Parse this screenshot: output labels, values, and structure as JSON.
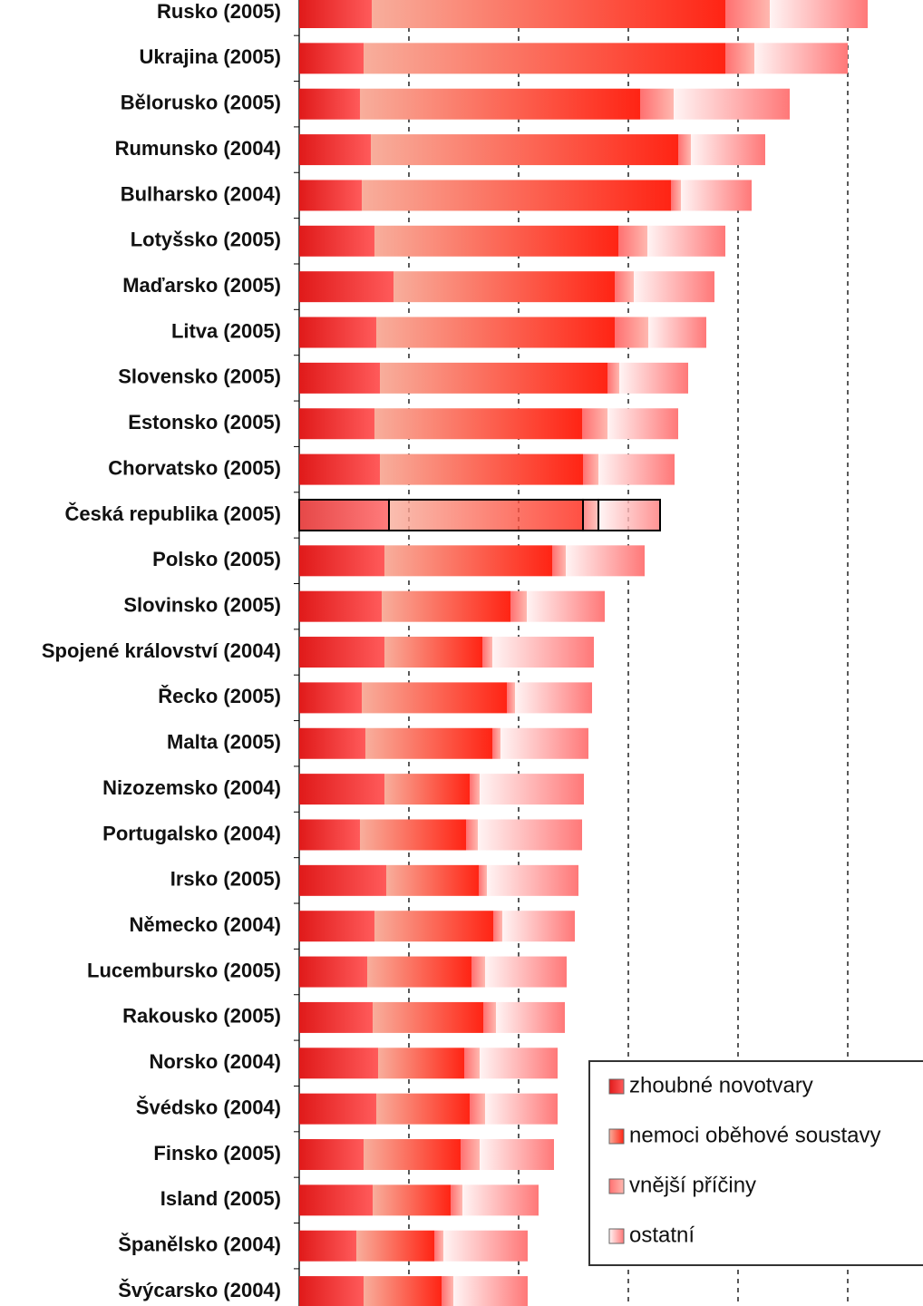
{
  "chart_data": {
    "type": "stacked-barh",
    "categories": [
      "Rusko (2005)",
      "Ukrajina (2005)",
      "Bělorusko (2005)",
      "Rumunsko (2004)",
      "Bulharsko (2004)",
      "Lotyšsko (2005)",
      "Maďarsko (2005)",
      "Litva (2005)",
      "Slovensko (2005)",
      "Estonsko (2005)",
      "Chorvatsko (2005)",
      "Česká republika (2005)",
      "Polsko (2005)",
      "Slovinsko (2005)",
      "Spojené království (2004)",
      "Řecko (2005)",
      "Malta (2005)",
      "Nizozemsko (2004)",
      "Portugalsko (2004)",
      "Irsko (2005)",
      "Německo (2004)",
      "Lucembursko (2005)",
      "Rakousko (2005)",
      "Norsko (2004)",
      "Švédsko (2004)",
      "Finsko (2005)",
      "Island (2005)",
      "Španělsko (2004)",
      "Švýcarsko (2004)"
    ],
    "series": [
      {
        "name": "zhoubné novotvary",
        "gradient": [
          "#e01a1a",
          "#ff5a5a"
        ],
        "values": [
          80,
          71,
          67,
          79,
          69,
          83,
          104,
          85,
          89,
          83,
          89,
          99,
          94,
          91,
          94,
          69,
          73,
          94,
          67,
          96,
          83,
          75,
          81,
          87,
          85,
          71,
          81,
          63,
          71
        ]
      },
      {
        "name": "nemoci oběhové soustavy",
        "gradient": [
          "#f8ae9c",
          "#ff2414"
        ],
        "values": [
          390,
          399,
          309,
          339,
          341,
          269,
          244,
          263,
          251,
          229,
          224,
          214,
          185,
          142,
          108,
          160,
          140,
          94,
          117,
          102,
          131,
          115,
          122,
          95,
          103,
          107,
          86,
          86,
          86
        ]
      },
      {
        "name": "vnější příčiny",
        "gradient": [
          "#ff7070",
          "#ffb8b0"
        ],
        "values": [
          49,
          32,
          37,
          14,
          11,
          32,
          21,
          37,
          13,
          28,
          17,
          17,
          15,
          18,
          11,
          9,
          9,
          11,
          13,
          9,
          10,
          15,
          14,
          17,
          17,
          21,
          13,
          10,
          13
        ]
      },
      {
        "name": "ostatní",
        "gradient": [
          "#fff4f4",
          "#ff7878"
        ],
        "values": [
          108,
          103,
          128,
          82,
          78,
          86,
          89,
          64,
          76,
          78,
          84,
          68,
          87,
          86,
          112,
          85,
          97,
          115,
          115,
          101,
          80,
          90,
          76,
          86,
          80,
          82,
          84,
          93,
          82
        ]
      }
    ],
    "xlim": [
      0,
      688
    ],
    "xgrid": [
      121,
      242,
      363,
      484,
      605
    ],
    "highlight": 11
  }
}
